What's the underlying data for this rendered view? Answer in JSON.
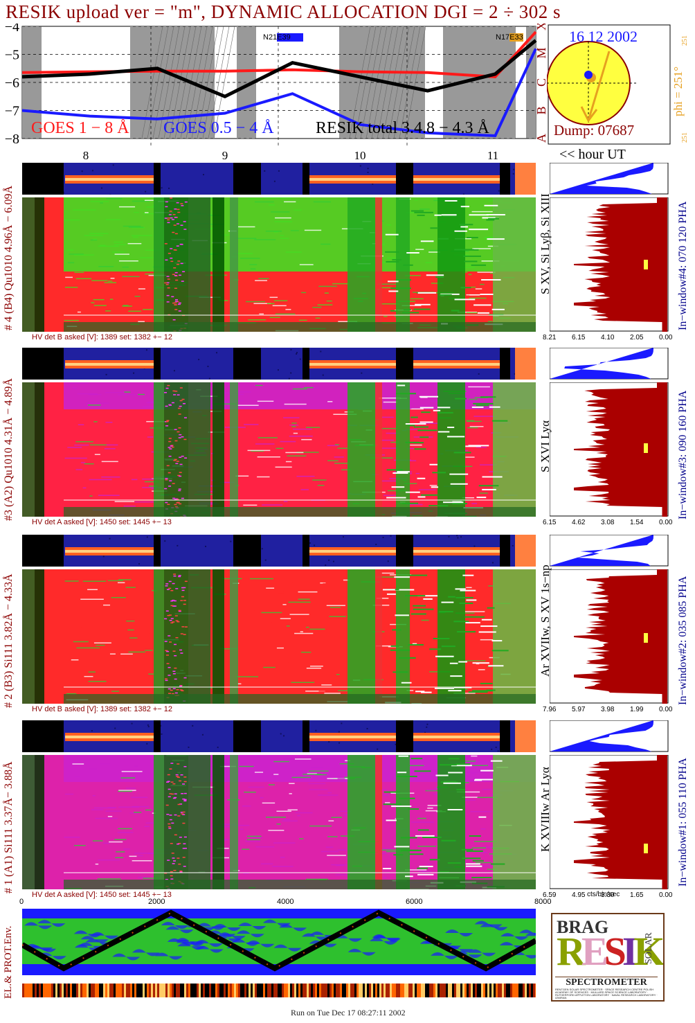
{
  "title": "RESIK upload ver = \"m\", DYNAMIC ALLOCATION  DGI =   2 ÷ 302 s",
  "colors": {
    "red": "#ff1a1a",
    "blue": "#1a1aff",
    "darkred": "#8b0000",
    "navy": "#00008b",
    "orange": "#e6a020",
    "yellow": "#ffff40",
    "green": "#33cc33"
  },
  "goes": {
    "yticks": [
      "−4",
      "−5",
      "−6",
      "−7",
      "−8"
    ],
    "class_letters": [
      "A",
      "B",
      "C",
      "M",
      "X"
    ],
    "legend_goes18": "GOES 1 − 8 Å",
    "legend_goes054": "GOES 0.5 − 4 Å",
    "legend_resik": "RESIK total 3.4.8 − 4.3 Å",
    "tag1_a": "N21",
    "tag1_b": "E39",
    "tag2_a": "N17",
    "tag2_b": "E33",
    "hours": [
      "8",
      "9",
      "10",
      "11"
    ],
    "hour_label": "<< hour UT"
  },
  "sun": {
    "date": "16 12 2002",
    "dump": "Dump: 07687",
    "phi": "phi = 251°",
    "phi_small_top": "251",
    "phi_small_bottom": "251"
  },
  "panels": [
    {
      "left_label": "# 4 (B4) Qu1010  4.96Å − 6.09Å",
      "line_label": "S XV,  Si Lyβ,  Si XIII",
      "window_label": "In−window#4:  070 120 PHA",
      "hv": "HV det B asked [V]:  1389 set:  1382  +−   12",
      "ticks": [
        "8.21",
        "6.15",
        "4.10",
        "2.05",
        "0.00"
      ]
    },
    {
      "left_label": "#3 (A2) Qu1010  4.31Å − 4.89Å",
      "line_label": "S XVI Lyα",
      "window_label": "In−window#3:  090 160 PHA",
      "hv": "HV det A asked [V]:  1450 set:  1445  +−   13",
      "ticks": [
        "6.15",
        "4.62",
        "3.08",
        "1.54",
        "0.00"
      ]
    },
    {
      "left_label": "# 2 (B3) Si111  3.82Å − 4.33Å",
      "line_label": "Ar XVIIw,  S XV 1s−np",
      "window_label": "In−window#2:  035 085 PHA",
      "hv": "HV det B asked [V]:  1389 set:  1382  +−   12",
      "ticks": [
        "7.96",
        "5.97",
        "3.98",
        "1.99",
        "0.00"
      ]
    },
    {
      "left_label": "# 1 (A1) Si111  3.37Å− 3.88Å",
      "line_label": "K XVIIIw  Ar Lyα",
      "window_label": "In−window#1:  055 110 PHA",
      "hv": "HV det A asked [V]:  1450 set:  1445  +−   13",
      "ticks": [
        "6.59",
        "4.95",
        "3.30",
        "1.65",
        "0.00"
      ]
    }
  ],
  "bins_axis": {
    "ticks": [
      "0",
      "2000",
      "4000",
      "6000",
      "8000"
    ],
    "unit": "cts/bin/sec"
  },
  "env": {
    "label": "EL.& PROT.Env."
  },
  "logo": {
    "top": "BRAG",
    "letters": [
      "R",
      "E",
      "S",
      "I",
      "K"
    ],
    "side": "SOLAR",
    "bottom": "SPECTROMETER",
    "fine": "RENTGEN SOLAR SPECTROMETER · SPACE RESEARCH CENTRE POLISH ACADEMY OF SCIENCES · MULLARD SPACE SCIENCE LABORATORY · RUTHERFORD APPLETON LABORATORY · NAVAL RESEARCH LABORATORY · IZMIRAN"
  },
  "run": "Run on Tue Dec 17 08:27:11 2002",
  "chart_data": {
    "type": "line",
    "x": [
      "7.5",
      "8",
      "8.5",
      "9",
      "9.5",
      "10",
      "10.5",
      "11",
      "11.3"
    ],
    "series": [
      {
        "name": "GOES 1 − 8 Å",
        "values": [
          -5.65,
          -5.62,
          -5.6,
          -5.6,
          -5.55,
          -5.62,
          -5.65,
          -5.8,
          -4.2
        ]
      },
      {
        "name": "GOES 0.5 − 4 Å",
        "values": [
          -7.0,
          -7.2,
          -7.3,
          -7.1,
          -6.4,
          -7.5,
          -7.8,
          -7.9,
          -4.8
        ]
      },
      {
        "name": "RESIK total 3.4.8 − 4.3 Å",
        "values": [
          -5.8,
          -5.7,
          -5.5,
          -6.5,
          -5.3,
          -5.8,
          -6.3,
          -5.7,
          -4.5
        ]
      }
    ],
    "ylim": [
      -8,
      -4
    ],
    "xlabel": "<< hour UT"
  }
}
